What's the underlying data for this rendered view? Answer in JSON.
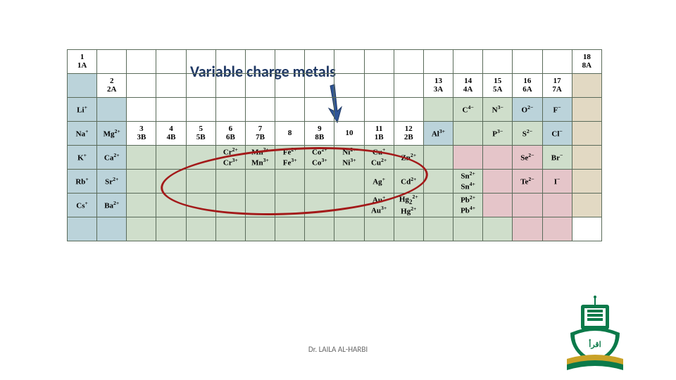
{
  "title": "Variable charge metals",
  "credit": "Dr. LAILA AL-HARBI",
  "colors": {
    "blue": "#bbd3da",
    "green": "#cfdecb",
    "pink": "#e5c5c9",
    "tan": "#e2d9c3",
    "title_color": "#1f3864",
    "arrow_color": "#2f5597",
    "ellipse_color": "#a31919",
    "cell_border": "#5a6b5a",
    "logo_green": "#0b7a4a",
    "logo_gold": "#c9a227"
  },
  "typography": {
    "title_fontsize": 22,
    "cell_fontsize": 11,
    "header_fontsize": 9,
    "credit_fontsize": 11
  },
  "periodic": {
    "group_headers_main": [
      {
        "num": "1",
        "label": "1A"
      },
      {
        "num": "2",
        "label": "2A"
      },
      {
        "num": "3",
        "label": "3B"
      },
      {
        "num": "4",
        "label": "4B"
      },
      {
        "num": "5",
        "label": "5B"
      },
      {
        "num": "6",
        "label": "6B"
      },
      {
        "num": "7",
        "label": "7B"
      },
      {
        "num": "8",
        "label": ""
      },
      {
        "num": "9",
        "label": "8B"
      },
      {
        "num": "10",
        "label": ""
      },
      {
        "num": "11",
        "label": "1B"
      },
      {
        "num": "12",
        "label": "2B"
      },
      {
        "num": "13",
        "label": "3A"
      },
      {
        "num": "14",
        "label": "4A"
      },
      {
        "num": "15",
        "label": "5A"
      },
      {
        "num": "16",
        "label": "6A"
      },
      {
        "num": "17",
        "label": "7A"
      },
      {
        "num": "18",
        "label": "8A"
      }
    ],
    "rows": [
      [
        {
          "txt": "",
          "cls": "c-blue"
        },
        null,
        null,
        null,
        null,
        null,
        null,
        null,
        null,
        null,
        null,
        null,
        null,
        null,
        null,
        null,
        null,
        {
          "txt": "",
          "cls": "c-tan"
        }
      ],
      [
        {
          "html": "Li<sup>+</sup>",
          "cls": "c-blue"
        },
        {
          "txt": "",
          "cls": "c-blue"
        },
        null,
        null,
        null,
        null,
        null,
        null,
        null,
        null,
        null,
        null,
        {
          "txt": "",
          "cls": "c-green"
        },
        {
          "html": "C<sup>4−</sup>",
          "cls": "c-green"
        },
        {
          "html": "N<sup>3−</sup>",
          "cls": "c-green"
        },
        {
          "html": "O<sup>2−</sup>",
          "cls": "c-blue"
        },
        {
          "html": "F<sup>−</sup>",
          "cls": "c-blue"
        },
        {
          "txt": "",
          "cls": "c-tan"
        }
      ],
      [
        {
          "html": "Na<sup>+</sup>",
          "cls": "c-blue"
        },
        {
          "html": "Mg<sup>2+</sup>",
          "cls": "c-blue"
        },
        null,
        null,
        null,
        null,
        null,
        null,
        null,
        null,
        null,
        null,
        {
          "html": "Al<sup>3+</sup>",
          "cls": "c-blue"
        },
        {
          "txt": "",
          "cls": "c-green"
        },
        {
          "html": "P<sup>3−</sup>",
          "cls": "c-green"
        },
        {
          "html": "S<sup>2−</sup>",
          "cls": "c-green"
        },
        {
          "html": "Cl<sup>−</sup>",
          "cls": "c-blue"
        },
        {
          "txt": "",
          "cls": "c-tan"
        }
      ],
      [
        {
          "html": "K<sup>+</sup>",
          "cls": "c-blue"
        },
        {
          "html": "Ca<sup>2+</sup>",
          "cls": "c-blue"
        },
        {
          "txt": "",
          "cls": "c-green"
        },
        {
          "txt": "",
          "cls": "c-green"
        },
        {
          "txt": "",
          "cls": "c-green"
        },
        {
          "html": "Cr<sup>2+</sup><br>Cr<sup>3+</sup>",
          "cls": "c-green ion2"
        },
        {
          "html": "Mn<sup>2+</sup><br>Mn<sup>3+</sup>",
          "cls": "c-green ion2"
        },
        {
          "html": "Fe<sup>2+</sup><br>Fe<sup>3+</sup>",
          "cls": "c-green ion2"
        },
        {
          "html": "Co<sup>2+</sup><br>Co<sup>3+</sup>",
          "cls": "c-green ion2"
        },
        {
          "html": "Ni<sup>2+</sup><br>Ni<sup>3+</sup>",
          "cls": "c-green ion2"
        },
        {
          "html": "Cu<sup>+</sup><br>Cu<sup>2+</sup>",
          "cls": "c-green ion2"
        },
        {
          "html": "Zn<sup>2+</sup>",
          "cls": "c-green"
        },
        {
          "txt": "",
          "cls": "c-green"
        },
        {
          "txt": "",
          "cls": "c-pink"
        },
        {
          "txt": "",
          "cls": "c-pink"
        },
        {
          "html": "Se<sup>2−</sup>",
          "cls": "c-pink"
        },
        {
          "html": "Br<sup>−</sup>",
          "cls": "c-green"
        },
        {
          "txt": "",
          "cls": "c-tan"
        }
      ],
      [
        {
          "html": "Rb<sup>+</sup>",
          "cls": "c-blue"
        },
        {
          "html": "Sr<sup>2+</sup>",
          "cls": "c-blue"
        },
        {
          "txt": "",
          "cls": "c-green"
        },
        {
          "txt": "",
          "cls": "c-green"
        },
        {
          "txt": "",
          "cls": "c-green"
        },
        {
          "txt": "",
          "cls": "c-green"
        },
        {
          "txt": "",
          "cls": "c-green"
        },
        {
          "txt": "",
          "cls": "c-green"
        },
        {
          "txt": "",
          "cls": "c-green"
        },
        {
          "txt": "",
          "cls": "c-green"
        },
        {
          "html": "Ag<sup>+</sup>",
          "cls": "c-green"
        },
        {
          "html": "Cd<sup>2+</sup>",
          "cls": "c-green"
        },
        {
          "txt": "",
          "cls": "c-green"
        },
        {
          "html": "Sn<sup>2+</sup><br>Sn<sup>4+</sup>",
          "cls": "c-green ion2"
        },
        {
          "txt": "",
          "cls": "c-pink"
        },
        {
          "html": "Te<sup>2−</sup>",
          "cls": "c-pink"
        },
        {
          "html": "I<sup>−</sup>",
          "cls": "c-pink"
        },
        {
          "txt": "",
          "cls": "c-tan"
        }
      ],
      [
        {
          "html": "Cs<sup>+</sup>",
          "cls": "c-blue"
        },
        {
          "html": "Ba<sup>2+</sup>",
          "cls": "c-blue"
        },
        {
          "txt": "",
          "cls": "c-green"
        },
        {
          "txt": "",
          "cls": "c-green"
        },
        {
          "txt": "",
          "cls": "c-green"
        },
        {
          "txt": "",
          "cls": "c-green"
        },
        {
          "txt": "",
          "cls": "c-green"
        },
        {
          "txt": "",
          "cls": "c-green"
        },
        {
          "txt": "",
          "cls": "c-green"
        },
        {
          "txt": "",
          "cls": "c-green"
        },
        {
          "html": "Au<sup>+</sup><br>Au<sup>3+</sup>",
          "cls": "c-green ion2"
        },
        {
          "html": "Hg<sub>2</sub><sup>2+</sup><br>Hg<sup>2+</sup>",
          "cls": "c-green ion2"
        },
        {
          "txt": "",
          "cls": "c-green"
        },
        {
          "html": "Pb<sup>2+</sup><br>Pb<sup>4+</sup>",
          "cls": "c-green ion2"
        },
        {
          "txt": "",
          "cls": "c-pink"
        },
        {
          "txt": "",
          "cls": "c-pink"
        },
        {
          "txt": "",
          "cls": "c-pink"
        },
        {
          "txt": "",
          "cls": "c-tan"
        }
      ],
      [
        {
          "txt": "",
          "cls": "c-blue"
        },
        {
          "txt": "",
          "cls": "c-blue"
        },
        {
          "txt": "",
          "cls": "c-green"
        },
        {
          "txt": "",
          "cls": "c-green"
        },
        {
          "txt": "",
          "cls": "c-green"
        },
        {
          "txt": "",
          "cls": "c-green"
        },
        {
          "txt": "",
          "cls": "c-green"
        },
        {
          "txt": "",
          "cls": "c-green"
        },
        {
          "txt": "",
          "cls": "c-green"
        },
        {
          "txt": "",
          "cls": "c-green"
        },
        {
          "txt": "",
          "cls": "c-green"
        },
        {
          "txt": "",
          "cls": "c-green"
        },
        {
          "txt": "",
          "cls": "c-green"
        },
        {
          "txt": "",
          "cls": "c-green"
        },
        {
          "txt": "",
          "cls": "c-green"
        },
        {
          "txt": "",
          "cls": "c-pink"
        },
        {
          "txt": "",
          "cls": "c-pink"
        },
        null
      ]
    ]
  }
}
